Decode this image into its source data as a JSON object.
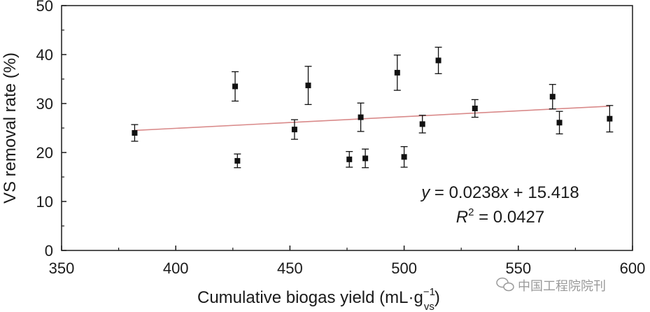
{
  "chart_data": {
    "type": "scatter",
    "title": "",
    "xlabel": "Cumulative biogas yield (mL·g",
    "xlabel_sup": "−1",
    "xlabel_sub": "vs",
    "xlabel_close": ")",
    "ylabel": "VS removal rate (%)",
    "xlim": [
      350,
      600
    ],
    "ylim": [
      0,
      50
    ],
    "x_ticks": [
      350,
      400,
      450,
      500,
      550,
      600
    ],
    "y_ticks": [
      0,
      10,
      20,
      30,
      40,
      50
    ],
    "x_tick_labels": [
      "350",
      "400",
      "450",
      "500",
      "550",
      "600"
    ],
    "y_tick_labels": [
      "0",
      "10",
      "20",
      "30",
      "40",
      "50"
    ],
    "grid": false,
    "series": [
      {
        "name": "VS removal rate",
        "marker": "square",
        "color": "#111111",
        "points": [
          {
            "x": 382,
            "y": 24.0,
            "err": 1.7
          },
          {
            "x": 426,
            "y": 33.5,
            "err": 3.0
          },
          {
            "x": 427,
            "y": 18.3,
            "err": 1.4
          },
          {
            "x": 452,
            "y": 24.7,
            "err": 2.0
          },
          {
            "x": 458,
            "y": 33.7,
            "err": 3.9
          },
          {
            "x": 476,
            "y": 18.6,
            "err": 1.6
          },
          {
            "x": 481,
            "y": 27.2,
            "err": 2.9
          },
          {
            "x": 483,
            "y": 18.8,
            "err": 1.9
          },
          {
            "x": 497,
            "y": 36.3,
            "err": 3.6
          },
          {
            "x": 500,
            "y": 19.1,
            "err": 2.1
          },
          {
            "x": 508,
            "y": 25.8,
            "err": 1.8
          },
          {
            "x": 515,
            "y": 38.8,
            "err": 2.7
          },
          {
            "x": 531,
            "y": 29.0,
            "err": 1.8
          },
          {
            "x": 565,
            "y": 31.4,
            "err": 2.5
          },
          {
            "x": 568,
            "y": 26.1,
            "err": 2.3
          },
          {
            "x": 590,
            "y": 26.9,
            "err": 2.7
          }
        ]
      }
    ],
    "trendline": {
      "slope": 0.0238,
      "intercept": 15.418,
      "x_range": [
        382,
        590
      ],
      "color": "#d98a8a"
    },
    "annotations": {
      "equation": {
        "y": "y",
        "eq1": " = 0.0238",
        "x": "x",
        "eq2": " + 15.418"
      },
      "r2": {
        "r": "R",
        "sup": "2",
        "rest": " = 0.0427"
      }
    }
  },
  "watermark": {
    "text": "中国工程院院刊",
    "icon": "wechat-icon"
  }
}
